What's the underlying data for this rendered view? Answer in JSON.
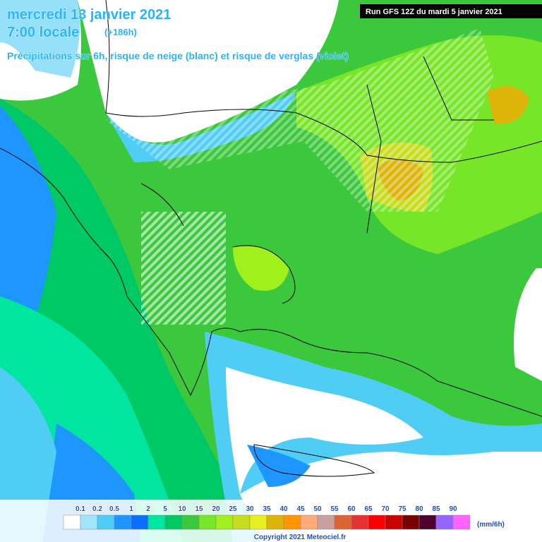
{
  "header": {
    "date": "mercredi 13 janvier 2021",
    "time": "7:00 locale",
    "lead": "(+186h)",
    "subtitle": "Précipitations sur 6h, risque de neige (blanc) et risque de verglas (violet)",
    "run": "Run GFS 12Z du mardi 5 janvier 2021"
  },
  "legend": {
    "labels": [
      "0.1",
      "0.2",
      "0.5",
      "1",
      "2",
      "5",
      "10",
      "15",
      "20",
      "25",
      "30",
      "35",
      "40",
      "45",
      "50",
      "55",
      "60",
      "65",
      "70",
      "75",
      "80",
      "85",
      "90"
    ],
    "colors": [
      "#ffffff",
      "#a0e6ff",
      "#50cdf5",
      "#1e96ff",
      "#0a6eff",
      "#00e6a0",
      "#00c864",
      "#3cc83c",
      "#78e628",
      "#a0f01e",
      "#c8dc1e",
      "#e6f01e",
      "#dcb40a",
      "#ff9600",
      "#ffaa78",
      "#c8a0a0",
      "#dc6432",
      "#e63232",
      "#ff0000",
      "#c80000",
      "#780000",
      "#50002d",
      "#9664ff",
      "#ff64ff"
    ],
    "unit": "(mm/6h)"
  },
  "footer": {
    "copyright": "Copyright 2021 Meteociel.fr"
  }
}
